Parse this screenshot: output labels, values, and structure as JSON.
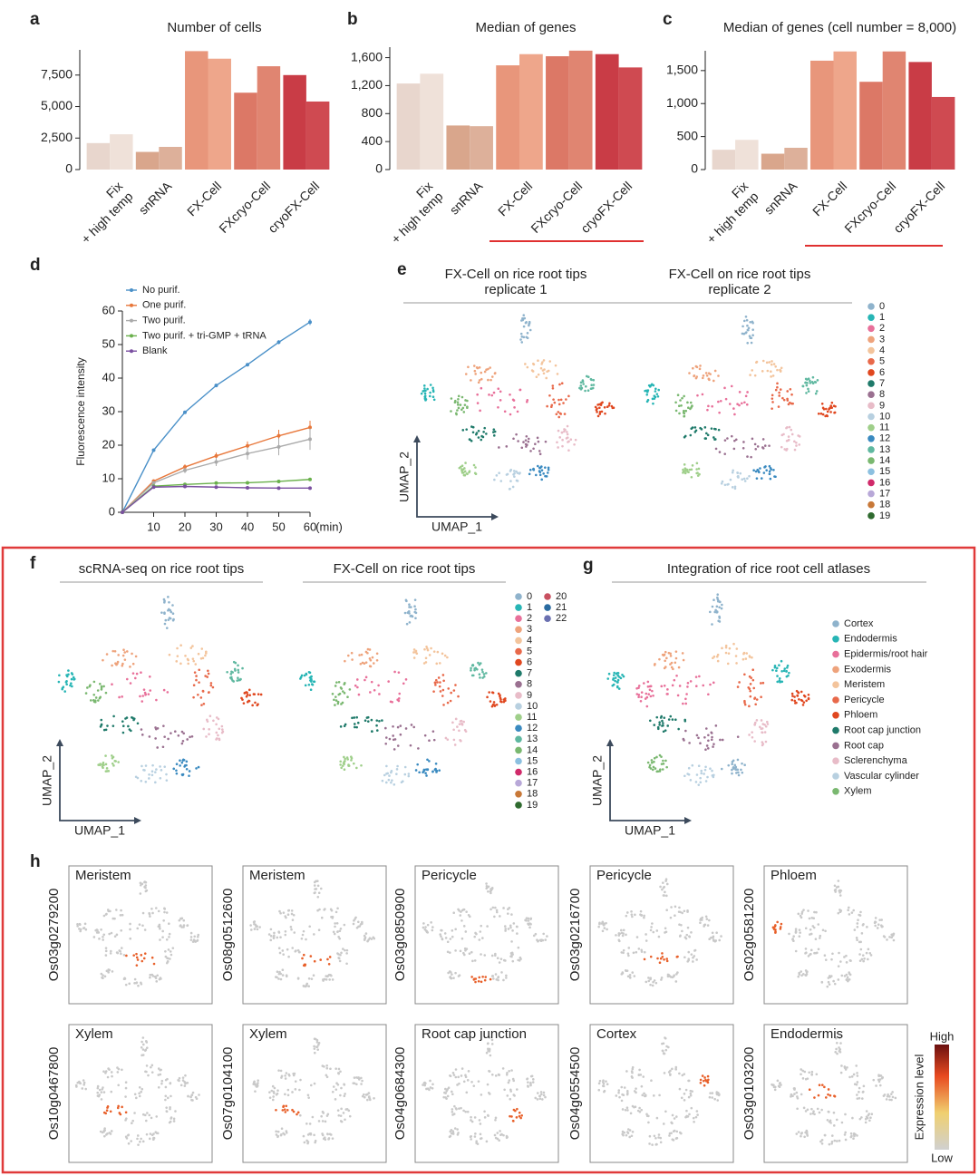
{
  "chart_data": [
    {
      "type": "bar",
      "panel": "a",
      "title": "Number of cells",
      "categories": [
        "Fix\n+ high temp",
        "snRNA",
        "FX-Cell",
        "FXcryo-Cell",
        "cryoFX-Cell"
      ],
      "values": [
        [
          2100,
          2800
        ],
        [
          1400,
          1800
        ],
        [
          9400,
          8800
        ],
        [
          6100,
          8200
        ],
        [
          7500,
          5400
        ]
      ],
      "colors": [
        [
          "#e8d6cd",
          "#efe1d9"
        ],
        [
          "#d9a68c",
          "#ddb09a"
        ],
        [
          "#e8967b",
          "#eea68b"
        ],
        [
          "#dc7866",
          "#e08571"
        ],
        [
          "#c93c46",
          "#cf4a51"
        ]
      ],
      "ylim": [
        0,
        9500
      ],
      "yticks": [
        0,
        {
          "value": 2500,
          "label": "2,500"
        },
        {
          "value": 5000,
          "label": "5,000"
        },
        {
          "value": 7500,
          "label": "7,500"
        }
      ]
    },
    {
      "type": "bar",
      "panel": "b",
      "title": "Median of genes",
      "categories": [
        "Fix\n+ high temp",
        "snRNA",
        "FX-Cell",
        "FXcryo-Cell",
        "cryoFX-Cell"
      ],
      "values": [
        [
          1230,
          1370
        ],
        [
          630,
          620
        ],
        [
          1490,
          1650
        ],
        [
          1620,
          1700
        ],
        [
          1650,
          1460
        ]
      ],
      "colors": [
        [
          "#e8d6cd",
          "#efe1d9"
        ],
        [
          "#d9a68c",
          "#ddb09a"
        ],
        [
          "#e8967b",
          "#eea68b"
        ],
        [
          "#dc7866",
          "#e08571"
        ],
        [
          "#c93c46",
          "#cf4a51"
        ]
      ],
      "ylim": [
        0,
        1750
      ],
      "yticks": [
        0,
        400,
        800,
        {
          "value": 1200,
          "label": "1,200"
        },
        {
          "value": 1600,
          "label": "1,600"
        }
      ]
    },
    {
      "type": "bar",
      "panel": "c",
      "title": "Median of genes (cell number = 8,000)",
      "categories": [
        "Fix\n+ high temp",
        "snRNA",
        "FX-Cell",
        "FXcryo-Cell",
        "cryoFX-Cell"
      ],
      "values": [
        [
          300,
          450
        ],
        [
          240,
          330
        ],
        [
          1650,
          1790
        ],
        [
          1330,
          1790
        ],
        [
          1630,
          1100
        ]
      ],
      "colors": [
        [
          "#e8d6cd",
          "#efe1d9"
        ],
        [
          "#d9a68c",
          "#ddb09a"
        ],
        [
          "#e8967b",
          "#eea68b"
        ],
        [
          "#dc7866",
          "#e08571"
        ],
        [
          "#c93c46",
          "#cf4a51"
        ]
      ],
      "ylim": [
        0,
        1800
      ],
      "yticks": [
        0,
        500,
        {
          "value": 1000,
          "label": "1,000"
        },
        {
          "value": 1500,
          "label": "1,500"
        }
      ]
    },
    {
      "type": "line",
      "panel": "d",
      "ylabel": "Fluorescence intensity",
      "x_unit": "(min)",
      "x": [
        0,
        10,
        20,
        30,
        40,
        50,
        60
      ],
      "xlim": [
        0,
        60
      ],
      "xticks": [
        10,
        20,
        30,
        40,
        50,
        60
      ],
      "ylim": [
        0,
        60
      ],
      "yticks": [
        0,
        10,
        20,
        30,
        40,
        50,
        60
      ],
      "series": [
        {
          "name": "No purif.",
          "color": "#4a90c8",
          "values": [
            0,
            18.5,
            29.8,
            37.8,
            44,
            50.7,
            56.7
          ],
          "errors": [
            0,
            0.3,
            0.3,
            0.3,
            0.3,
            0.6,
            0.9
          ]
        },
        {
          "name": "One purif.",
          "color": "#e8773a",
          "values": [
            0,
            9.3,
            13.5,
            16.8,
            19.8,
            22.8,
            25.3
          ],
          "errors": [
            0,
            0.5,
            0.8,
            1,
            1.3,
            1.8,
            2
          ]
        },
        {
          "name": "Two purif.",
          "color": "#aaaaaa",
          "values": [
            0,
            8.8,
            12.5,
            15,
            17.5,
            19.5,
            21.8
          ],
          "errors": [
            0,
            0.5,
            0.8,
            1.2,
            1.8,
            2.5,
            3.2
          ]
        },
        {
          "name": "Two purif. + tri-GMP + tRNA",
          "color": "#6ab04c",
          "values": [
            0,
            7.8,
            8.3,
            8.7,
            8.8,
            9.2,
            9.8
          ],
          "errors": [
            0,
            0.2,
            0.2,
            0.2,
            0.2,
            0.3,
            0.3
          ]
        },
        {
          "name": "Blank",
          "color": "#7a4fa0",
          "values": [
            0,
            7.5,
            7.7,
            7.5,
            7.3,
            7.2,
            7.2
          ],
          "errors": [
            0,
            0.3,
            0.4,
            0.3,
            0.2,
            0.2,
            0.2
          ]
        }
      ]
    },
    {
      "type": "umap",
      "panel": "e",
      "titles": [
        "FX-Cell on rice root tips\nreplicate 1",
        "FX-Cell on rice root tips\nreplicate 2"
      ],
      "xlabel": "UMAP_1",
      "ylabel": "UMAP_2",
      "legend": [
        {
          "name": "0",
          "color": "#8fb3cc"
        },
        {
          "name": "1",
          "color": "#27b5b5"
        },
        {
          "name": "2",
          "color": "#e8709a"
        },
        {
          "name": "3",
          "color": "#eea37c"
        },
        {
          "name": "4",
          "color": "#f3c49c"
        },
        {
          "name": "5",
          "color": "#e8694a"
        },
        {
          "name": "6",
          "color": "#e0471f"
        },
        {
          "name": "7",
          "color": "#1f7a6a"
        },
        {
          "name": "8",
          "color": "#9a7090"
        },
        {
          "name": "9",
          "color": "#e8bcc8"
        },
        {
          "name": "10",
          "color": "#b8d0e0"
        },
        {
          "name": "11",
          "color": "#9fcf8a"
        },
        {
          "name": "12",
          "color": "#3a8ac0"
        },
        {
          "name": "13",
          "color": "#5fb8a0"
        },
        {
          "name": "14",
          "color": "#7ab870"
        },
        {
          "name": "15",
          "color": "#8cc0e0"
        },
        {
          "name": "16",
          "color": "#d02a6a"
        },
        {
          "name": "17",
          "color": "#b8a8d8"
        },
        {
          "name": "18",
          "color": "#c87838"
        },
        {
          "name": "19",
          "color": "#2f6a2f"
        }
      ]
    },
    {
      "type": "umap",
      "panel": "f",
      "titles": [
        "scRNA-seq on rice root tips",
        "FX-Cell on rice root tips"
      ],
      "xlabel": "UMAP_1",
      "ylabel": "UMAP_2",
      "legend": [
        {
          "name": "0",
          "color": "#8fb3cc"
        },
        {
          "name": "1",
          "color": "#27b5b5"
        },
        {
          "name": "2",
          "color": "#e8709a"
        },
        {
          "name": "3",
          "color": "#eea37c"
        },
        {
          "name": "4",
          "color": "#f3c49c"
        },
        {
          "name": "5",
          "color": "#e8694a"
        },
        {
          "name": "6",
          "color": "#e0471f"
        },
        {
          "name": "7",
          "color": "#1f7a6a"
        },
        {
          "name": "8",
          "color": "#9a7090"
        },
        {
          "name": "9",
          "color": "#e8bcc8"
        },
        {
          "name": "10",
          "color": "#b8d0e0"
        },
        {
          "name": "11",
          "color": "#9fcf8a"
        },
        {
          "name": "12",
          "color": "#3a8ac0"
        },
        {
          "name": "13",
          "color": "#5fb8a0"
        },
        {
          "name": "14",
          "color": "#7ab870"
        },
        {
          "name": "15",
          "color": "#8cc0e0"
        },
        {
          "name": "16",
          "color": "#d02a6a"
        },
        {
          "name": "17",
          "color": "#b8a8d8"
        },
        {
          "name": "18",
          "color": "#c87838"
        },
        {
          "name": "19",
          "color": "#2f6a2f"
        },
        {
          "name": "20",
          "color": "#c85060"
        },
        {
          "name": "21",
          "color": "#2a6aa0"
        },
        {
          "name": "22",
          "color": "#6a70b0"
        }
      ]
    },
    {
      "type": "umap",
      "panel": "g",
      "titles": [
        "Integration of rice root cell atlases"
      ],
      "xlabel": "UMAP_1",
      "ylabel": "UMAP_2",
      "legend": [
        {
          "name": "Cortex",
          "color": "#8fb3cc"
        },
        {
          "name": "Endodermis",
          "color": "#27b5b5"
        },
        {
          "name": "Epidermis/root hair",
          "color": "#e8709a"
        },
        {
          "name": "Exodermis",
          "color": "#eea37c"
        },
        {
          "name": "Meristem",
          "color": "#f3c49c"
        },
        {
          "name": "Pericycle",
          "color": "#e8694a"
        },
        {
          "name": "Phloem",
          "color": "#e0471f"
        },
        {
          "name": "Root cap junction",
          "color": "#1f7a6a"
        },
        {
          "name": "Root cap",
          "color": "#9a7090"
        },
        {
          "name": "Sclerenchyma",
          "color": "#e8bcc8"
        },
        {
          "name": "Vascular cylinder",
          "color": "#b8d0e0"
        },
        {
          "name": "Xylem",
          "color": "#7ab870"
        }
      ]
    },
    {
      "type": "feature_umap",
      "panel": "h",
      "panels": [
        {
          "title": "Meristem",
          "gene": "Os03g0279200"
        },
        {
          "title": "Meristem",
          "gene": "Os08g0512600"
        },
        {
          "title": "Pericycle",
          "gene": "Os03g0850900"
        },
        {
          "title": "Pericycle",
          "gene": "Os03g0216700"
        },
        {
          "title": "Phloem",
          "gene": "Os02g0581200"
        },
        {
          "title": "Xylem",
          "gene": "Os10g0467800"
        },
        {
          "title": "Xylem",
          "gene": "Os07g0104100"
        },
        {
          "title": "Root cap junction",
          "gene": "Os04g0684300"
        },
        {
          "title": "Cortex",
          "gene": "Os04g0554500"
        },
        {
          "title": "Endodermis",
          "gene": "Os03g0103200"
        }
      ],
      "colorbar": {
        "high": "High",
        "low": "Low",
        "label": "Expression level"
      }
    }
  ]
}
